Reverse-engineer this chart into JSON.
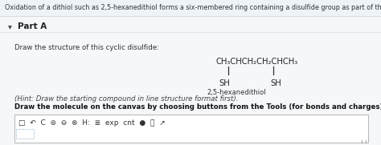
{
  "header_text": "Oxidation of a dithiol such as 2,5-hexanedithiol forms a six-membered ring containing a disulfide group as part of the ring.",
  "header_bg": "#eef3f7",
  "body_bg": "#f5f7f9",
  "part_a_arrow": "▾",
  "part_a_label": "Part A",
  "draw_instruction": "Draw the structure of this cyclic disulfide:",
  "molecule_formula": "CH₃CHCH₂CH₂CHCH₃",
  "sh_left": "SH",
  "sh_right": "SH",
  "molecule_name": "2,5-hexanedithiol",
  "hint_text": "(Hint: Draw the starting compound in line structure format first).",
  "bold_text": "Draw the molecule on the canvas by choosing buttons from the Tools (for bonds and charges), Atoms, and Templates toolbars.",
  "canvas_bg": "#ffffff",
  "canvas_border": "#bbbbbb",
  "toolbar_icons": "□  ↶  C  ⊚  ⊖  ⊗  H:  ≣  exp  cnt  ●  ❓  ↗"
}
